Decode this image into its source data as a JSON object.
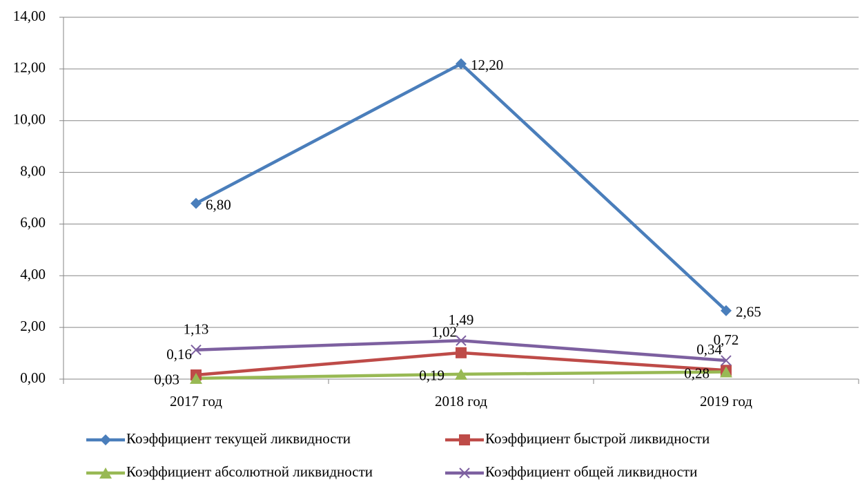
{
  "chart_data": {
    "type": "line",
    "categories": [
      "2017 год",
      "2018 год",
      "2019 год"
    ],
    "series": [
      {
        "name": "Коэффициент текущей ликвидности",
        "color": "#4a7ebb",
        "marker": "diamond",
        "values": [
          6.8,
          12.2,
          2.65
        ],
        "value_labels": [
          "6,80",
          "12,20",
          "2,65"
        ]
      },
      {
        "name": "Коэффициент быстрой ликвидности",
        "color": "#be4b48",
        "marker": "square",
        "values": [
          0.16,
          1.02,
          0.34
        ],
        "value_labels": [
          "0,16",
          "1,02",
          "0,34"
        ]
      },
      {
        "name": "Коэффициент абсолютной ликвидности",
        "color": "#98b954",
        "marker": "triangle",
        "values": [
          0.03,
          0.19,
          0.28
        ],
        "value_labels": [
          "0,03",
          "0,19",
          "0,28"
        ]
      },
      {
        "name": "Коэффициент общей ликвидности",
        "color": "#7d60a0",
        "marker": "x",
        "values": [
          1.13,
          1.49,
          0.72
        ],
        "value_labels": [
          "1,13",
          "1,49",
          "0,72"
        ]
      }
    ],
    "ylim": [
      0,
      14
    ],
    "yticks": [
      {
        "value": 0,
        "label": "0,00"
      },
      {
        "value": 2,
        "label": "2,00"
      },
      {
        "value": 4,
        "label": "4,00"
      },
      {
        "value": 6,
        "label": "6,00"
      },
      {
        "value": 8,
        "label": "8,00"
      },
      {
        "value": 10,
        "label": "10,00"
      },
      {
        "value": 12,
        "label": "12,00"
      },
      {
        "value": 14,
        "label": "14,00"
      }
    ],
    "grid": true,
    "legend": "bottom"
  }
}
